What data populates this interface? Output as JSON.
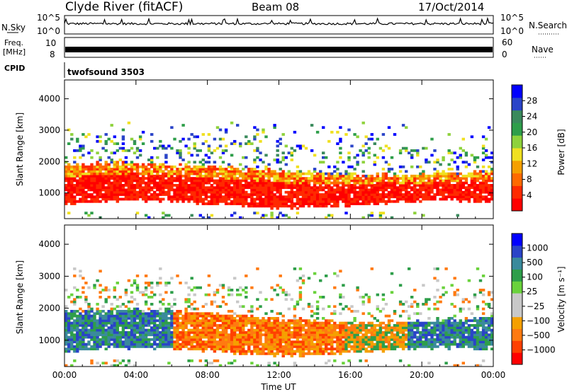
{
  "header": {
    "station": "Clyde River (fitACF)",
    "beam": "Beam 08",
    "date": "17/Oct/2014"
  },
  "strips": {
    "nsky_label": "N.Sky",
    "nsky_ticks": [
      "10^5",
      "10^0"
    ],
    "nsearch_label": "N.Search",
    "nsearch_ticks": [
      "10^5",
      "10^0"
    ],
    "freq_label_1": "Freq.",
    "freq_label_2": "[MHz]",
    "freq_ticks": [
      "10",
      "8"
    ],
    "nave_label": "Nave",
    "nave_ticks": [
      "60",
      "0"
    ],
    "cpid_label": "CPID",
    "cpid_value": "twofsound 3503"
  },
  "colors": {
    "power_scale": [
      "#0000ff",
      "#2a44c8",
      "#3a8a5c",
      "#2e9e4a",
      "#8ed23c",
      "#f0e020",
      "#f5a000",
      "#ff6a00",
      "#ff2a00",
      "#ff0000"
    ],
    "velocity_scale": [
      "#ff0000",
      "#ff4000",
      "#ff7a10",
      "#f5a000",
      "#c8c8c8",
      "#c8c8c8",
      "#6ad23c",
      "#2e9e4a",
      "#3a8a9c",
      "#2a44c8",
      "#0000ff"
    ]
  },
  "chart_data": [
    {
      "type": "heatmap",
      "name": "power",
      "ylabel": "Slant Range [km]",
      "yticks": [
        1000,
        2000,
        3000,
        4000
      ],
      "ylim": [
        180,
        4600
      ],
      "xlim": [
        0,
        24
      ],
      "xticks": [
        "00:00",
        "04:00",
        "08:00",
        "12:00",
        "16:00",
        "20:00",
        "00:00"
      ],
      "colorbar": {
        "label": "Power [dB]",
        "ticks": [
          "4",
          "8",
          "12",
          "16",
          "20",
          "24",
          "28"
        ],
        "range": [
          0,
          30
        ]
      },
      "dominant_echo_band_km": [
        600,
        1700
      ]
    },
    {
      "type": "heatmap",
      "name": "velocity",
      "ylabel": "Slant Range [km]",
      "yticks": [
        1000,
        2000,
        3000,
        4000
      ],
      "ylim": [
        180,
        4600
      ],
      "xlim": [
        0,
        24
      ],
      "xlabel": "Time UT",
      "xticks": [
        "00:00",
        "04:00",
        "08:00",
        "12:00",
        "16:00",
        "20:00",
        "00:00"
      ],
      "colorbar": {
        "label": "Velocity [m s⁻¹]",
        "ticks": [
          "1000",
          "500",
          "100",
          "25",
          "−25",
          "−100",
          "−500",
          "−1000"
        ]
      },
      "dominant_echo_band_km": [
        600,
        1700
      ]
    }
  ]
}
